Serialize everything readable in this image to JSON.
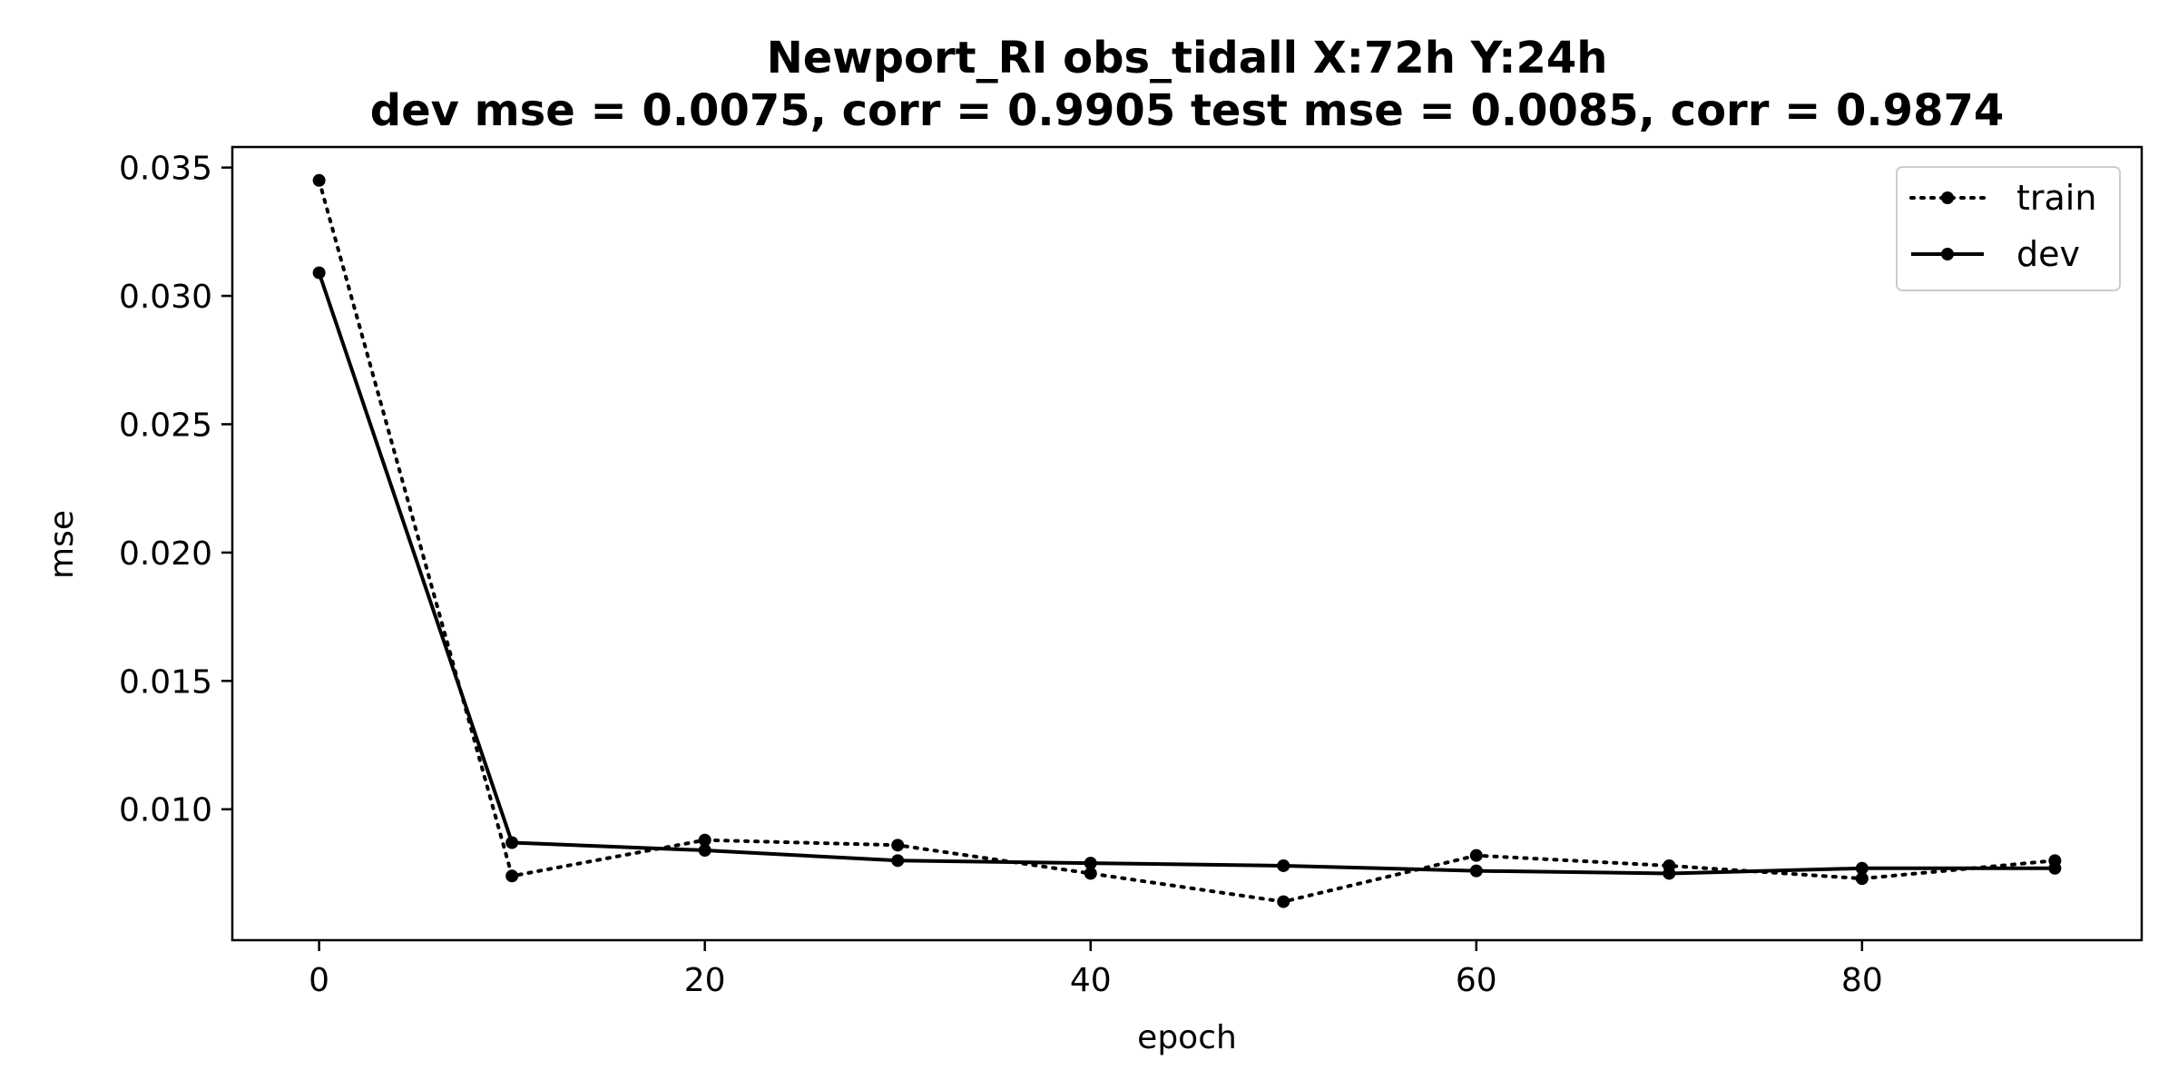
{
  "chart_data": {
    "type": "line",
    "title_line1": "Newport_RI   obs_tidall   X:72h   Y:24h",
    "title_line2": "dev mse = 0.0075, corr = 0.9905   test mse = 0.0085, corr = 0.9874",
    "xlabel": "epoch",
    "ylabel": "mse",
    "xlim": [
      -4.5,
      94.5
    ],
    "ylim": [
      0.0049,
      0.0358
    ],
    "xticks": [
      0,
      20,
      40,
      60,
      80
    ],
    "xtick_labels": [
      "0",
      "20",
      "40",
      "60",
      "80"
    ],
    "yticks": [
      0.01,
      0.015,
      0.02,
      0.025,
      0.03,
      0.035
    ],
    "ytick_labels": [
      "0.010",
      "0.015",
      "0.020",
      "0.025",
      "0.030",
      "0.035"
    ],
    "x": [
      0,
      10,
      20,
      30,
      40,
      50,
      60,
      70,
      80,
      90
    ],
    "series": [
      {
        "name": "train",
        "style": "dotted",
        "color": "#000000",
        "values": [
          0.0345,
          0.0074,
          0.0088,
          0.0086,
          0.0075,
          0.0064,
          0.0082,
          0.0078,
          0.0073,
          0.008
        ]
      },
      {
        "name": "dev",
        "style": "solid",
        "color": "#000000",
        "values": [
          0.0309,
          0.0087,
          0.0084,
          0.008,
          0.0079,
          0.0078,
          0.0076,
          0.0075,
          0.0077,
          0.0077
        ]
      }
    ],
    "legend_position": "top-right",
    "grid": false
  }
}
